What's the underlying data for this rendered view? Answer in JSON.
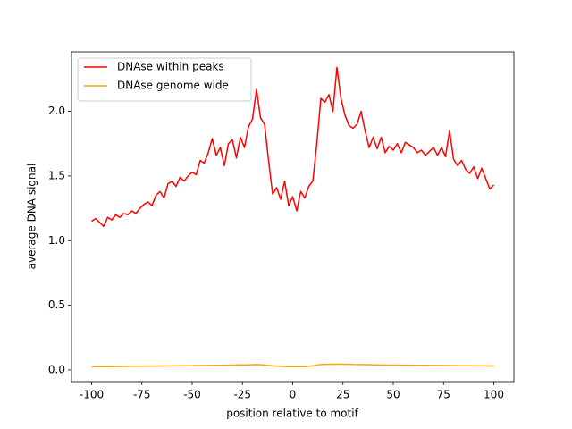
{
  "chart_data": {
    "type": "line",
    "xlabel": "position relative to motif",
    "ylabel": "average DNA signal",
    "x": [
      -100,
      -98,
      -96,
      -94,
      -92,
      -90,
      -88,
      -86,
      -84,
      -82,
      -80,
      -78,
      -76,
      -74,
      -72,
      -70,
      -68,
      -66,
      -64,
      -62,
      -60,
      -58,
      -56,
      -54,
      -52,
      -50,
      -48,
      -46,
      -44,
      -42,
      -40,
      -38,
      -36,
      -34,
      -32,
      -30,
      -28,
      -26,
      -24,
      -22,
      -20,
      -18,
      -16,
      -14,
      -12,
      -10,
      -8,
      -6,
      -4,
      -2,
      0,
      2,
      4,
      6,
      8,
      10,
      12,
      14,
      16,
      18,
      20,
      22,
      24,
      26,
      28,
      30,
      32,
      34,
      36,
      38,
      40,
      42,
      44,
      46,
      48,
      50,
      52,
      54,
      56,
      58,
      60,
      62,
      64,
      66,
      68,
      70,
      72,
      74,
      76,
      78,
      80,
      82,
      84,
      86,
      88,
      90,
      92,
      94,
      96,
      98,
      100
    ],
    "series": [
      {
        "name": "DNAse within peaks",
        "color": "#ff0000",
        "values": [
          1.15,
          1.17,
          1.14,
          1.11,
          1.18,
          1.16,
          1.2,
          1.18,
          1.21,
          1.2,
          1.23,
          1.21,
          1.25,
          1.28,
          1.3,
          1.27,
          1.35,
          1.38,
          1.33,
          1.44,
          1.46,
          1.42,
          1.49,
          1.46,
          1.5,
          1.53,
          1.51,
          1.62,
          1.6,
          1.68,
          1.79,
          1.66,
          1.72,
          1.58,
          1.75,
          1.78,
          1.64,
          1.8,
          1.72,
          1.88,
          1.94,
          2.17,
          1.95,
          1.9,
          1.62,
          1.36,
          1.41,
          1.32,
          1.46,
          1.27,
          1.34,
          1.23,
          1.38,
          1.33,
          1.42,
          1.46,
          1.75,
          2.1,
          2.07,
          2.13,
          2.0,
          2.34,
          2.1,
          1.97,
          1.89,
          1.87,
          1.9,
          2.0,
          1.85,
          1.72,
          1.8,
          1.71,
          1.8,
          1.68,
          1.73,
          1.7,
          1.75,
          1.68,
          1.76,
          1.74,
          1.72,
          1.68,
          1.7,
          1.66,
          1.69,
          1.72,
          1.66,
          1.72,
          1.65,
          1.85,
          1.63,
          1.58,
          1.62,
          1.55,
          1.52,
          1.57,
          1.48,
          1.56,
          1.48,
          1.4,
          1.43
        ]
      },
      {
        "name": "DNAse genome wide",
        "color": "#ffa500",
        "values": [
          0.025,
          0.025,
          0.026,
          0.026,
          0.026,
          0.027,
          0.027,
          0.027,
          0.028,
          0.028,
          0.028,
          0.029,
          0.029,
          0.029,
          0.03,
          0.03,
          0.03,
          0.031,
          0.031,
          0.031,
          0.032,
          0.032,
          0.032,
          0.033,
          0.033,
          0.033,
          0.034,
          0.034,
          0.034,
          0.035,
          0.035,
          0.036,
          0.036,
          0.037,
          0.037,
          0.038,
          0.039,
          0.04,
          0.039,
          0.04,
          0.041,
          0.042,
          0.041,
          0.038,
          0.035,
          0.032,
          0.03,
          0.028,
          0.027,
          0.026,
          0.026,
          0.025,
          0.026,
          0.027,
          0.028,
          0.032,
          0.038,
          0.042,
          0.044,
          0.045,
          0.044,
          0.046,
          0.045,
          0.044,
          0.045,
          0.043,
          0.042,
          0.042,
          0.041,
          0.041,
          0.04,
          0.04,
          0.039,
          0.039,
          0.038,
          0.038,
          0.038,
          0.037,
          0.037,
          0.037,
          0.036,
          0.036,
          0.036,
          0.035,
          0.035,
          0.035,
          0.035,
          0.034,
          0.034,
          0.034,
          0.034,
          0.033,
          0.033,
          0.033,
          0.033,
          0.032,
          0.032,
          0.032,
          0.032,
          0.031,
          0.031
        ]
      }
    ],
    "xlim": [
      -110,
      110
    ],
    "xticks": [
      -100,
      -75,
      -50,
      -25,
      0,
      25,
      50,
      75,
      100
    ],
    "ylim": [
      -0.09,
      2.46
    ],
    "yticks": [
      {
        "value": 0,
        "label": "0.0"
      },
      0.5,
      {
        "value": 1,
        "label": "1.0"
      },
      1.5,
      {
        "value": 2,
        "label": "2.0"
      }
    ],
    "legend": "upper left"
  }
}
